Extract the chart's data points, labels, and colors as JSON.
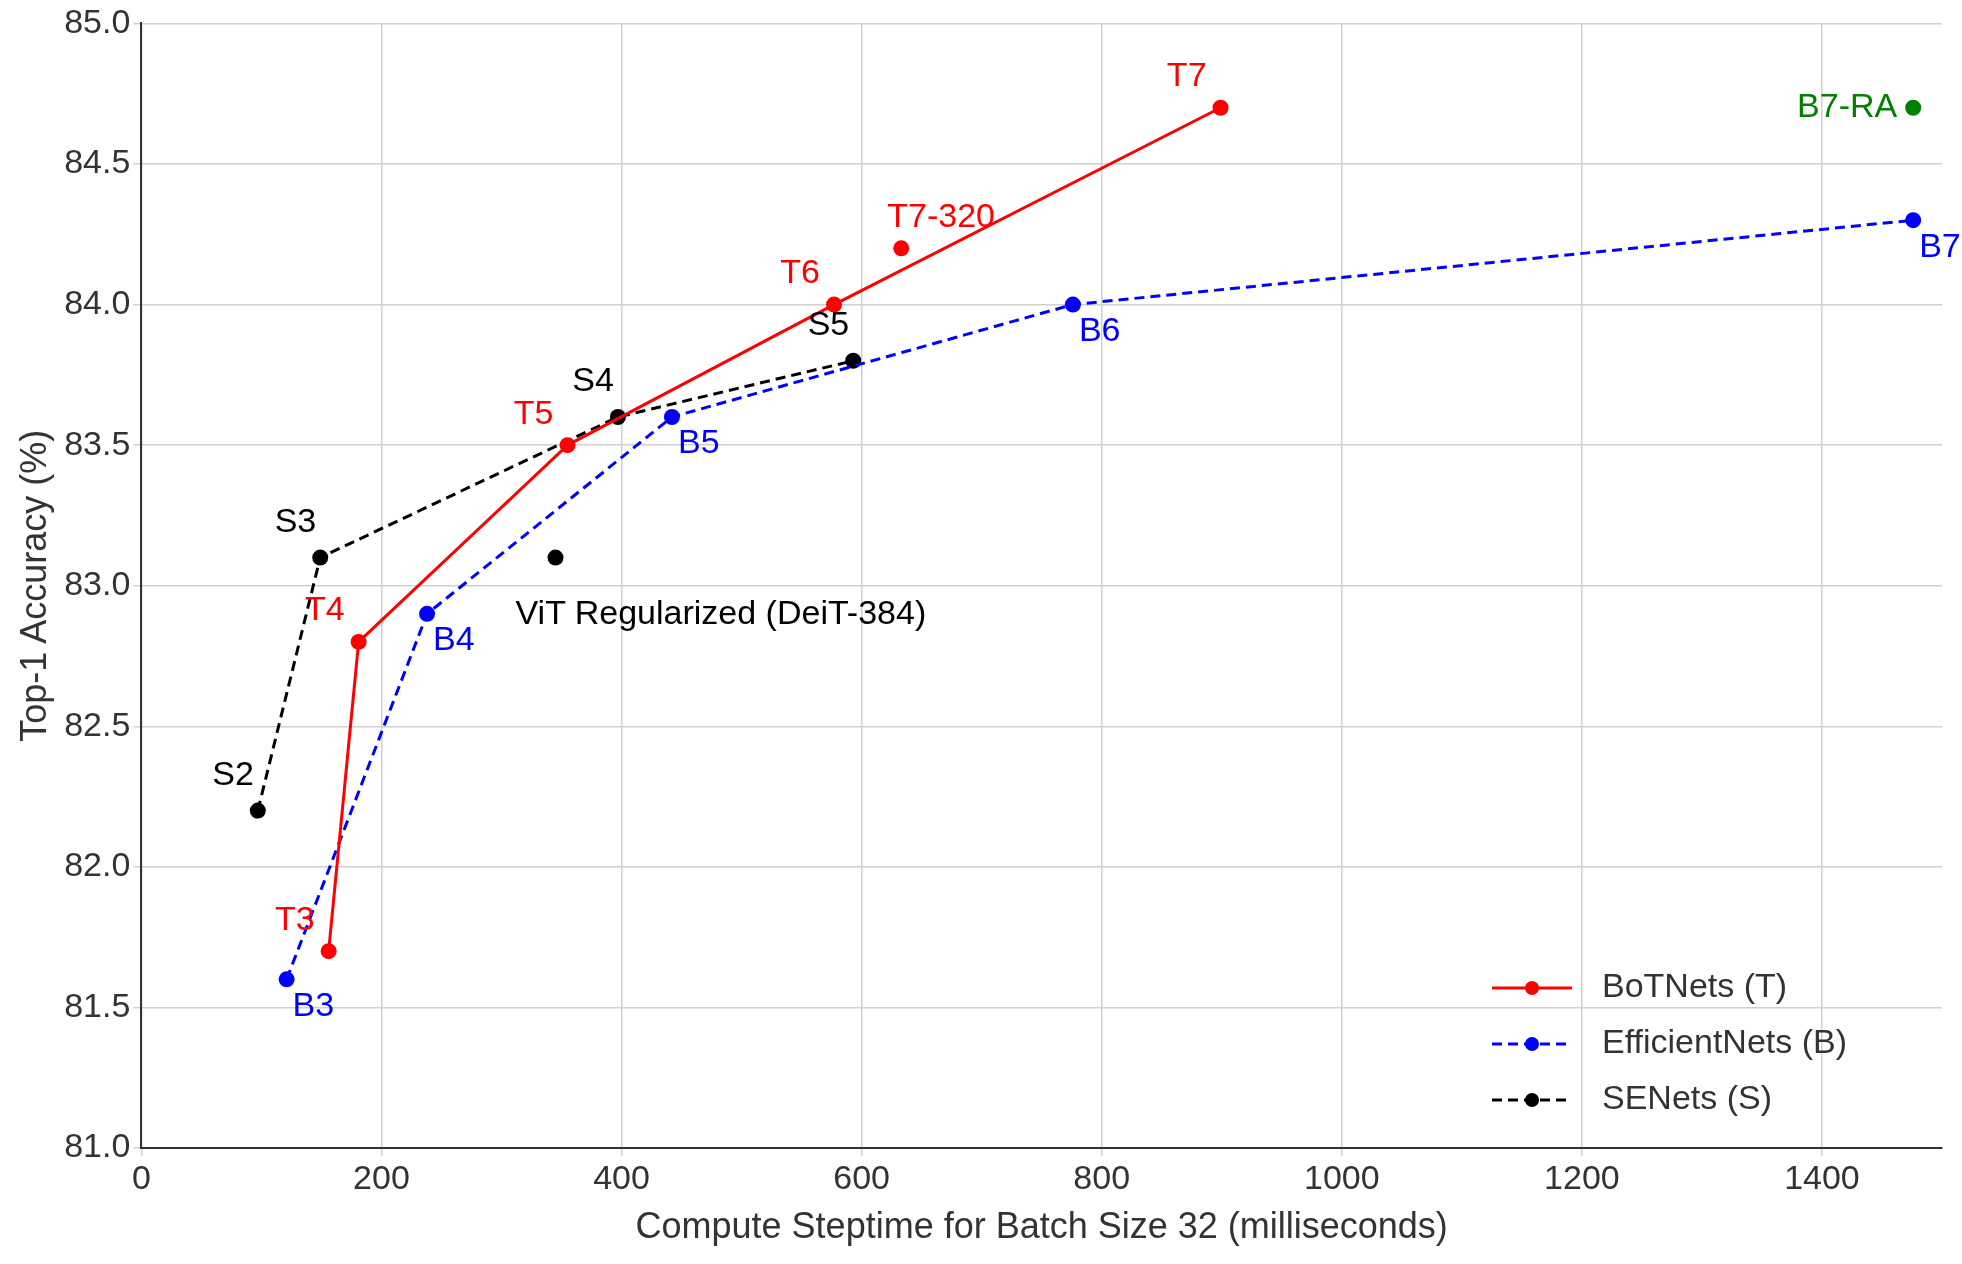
{
  "chart_data": {
    "type": "line",
    "xlabel": "Compute Steptime for Batch Size 32 (milliseconds)",
    "ylabel": "Top-1 Accuracy (%)",
    "xlim": [
      0,
      1500
    ],
    "xticks": [
      0,
      200,
      400,
      600,
      800,
      1000,
      1200,
      1400
    ],
    "ylim": [
      81,
      85
    ],
    "yticks": [
      {
        "value": 81,
        "label": "81.0"
      },
      {
        "value": 81.5,
        "label": "81.5"
      },
      {
        "value": 82,
        "label": "82.0"
      },
      {
        "value": 82.5,
        "label": "82.5"
      },
      {
        "value": 83,
        "label": "83.0"
      },
      {
        "value": 83.5,
        "label": "83.5"
      },
      {
        "value": 84,
        "label": "84.0"
      },
      {
        "value": 84.5,
        "label": "84.5"
      },
      {
        "value": 85,
        "label": "85.0"
      }
    ],
    "grid": true,
    "legend": "bottom right",
    "marker": "circle",
    "series": [
      {
        "name": "BoTNets (T)",
        "color": "#ff0000",
        "line_style": "solid",
        "x": [
          156,
          181,
          355,
          577,
          899
        ],
        "values": [
          81.7,
          82.8,
          83.5,
          84.0,
          84.7
        ]
      },
      {
        "name": "EfficientNets (B)",
        "color": "#0000ff",
        "line_style": "dashed",
        "x": [
          121,
          238,
          442,
          776,
          1476
        ],
        "values": [
          81.6,
          82.9,
          83.6,
          84.0,
          84.3
        ]
      },
      {
        "name": "SENets (S)",
        "color": "#000000",
        "line_style": "dashed",
        "x": [
          97,
          149,
          397,
          593
        ],
        "values": [
          82.2,
          83.1,
          83.6,
          83.8
        ]
      },
      {
        "type": "scatter",
        "color": "#ff0000",
        "x": [
          633
        ],
        "values": [
          84.2
        ]
      },
      {
        "type": "scatter",
        "color": "#000000",
        "x": [
          345
        ],
        "values": [
          83.1
        ]
      },
      {
        "type": "scatter",
        "color": "#008000",
        "x": [
          1476
        ],
        "values": [
          84.7
        ]
      }
    ],
    "annotations": [
      {
        "text": "T3",
        "x": 156,
        "y": 81.7
      },
      {
        "text": "T4",
        "x": 181,
        "y": 82.8
      },
      {
        "text": "T5",
        "x": 355,
        "y": 83.5
      },
      {
        "text": "T6",
        "x": 577,
        "y": 84.0
      },
      {
        "text": "T7",
        "x": 899,
        "y": 84.7
      },
      {
        "text": "B3",
        "x": 121,
        "y": 81.6
      },
      {
        "text": "B4",
        "x": 238,
        "y": 82.9
      },
      {
        "text": "B5",
        "x": 442,
        "y": 83.6
      },
      {
        "text": "B6",
        "x": 776,
        "y": 84.0
      },
      {
        "text": "B7",
        "x": 1476,
        "y": 84.3
      },
      {
        "text": "S2",
        "x": 97,
        "y": 82.2
      },
      {
        "text": "S3",
        "x": 149,
        "y": 83.1
      },
      {
        "text": "S4",
        "x": 397,
        "y": 83.6
      },
      {
        "text": "S5",
        "x": 593,
        "y": 83.8
      },
      {
        "text": "T7-320",
        "x": 633,
        "y": 84.2
      },
      {
        "text": "ViT Regularized (DeiT-384)",
        "x": 345,
        "y": 83.1
      },
      {
        "text": "B7-RA",
        "x": 1476,
        "y": 84.7
      }
    ]
  }
}
